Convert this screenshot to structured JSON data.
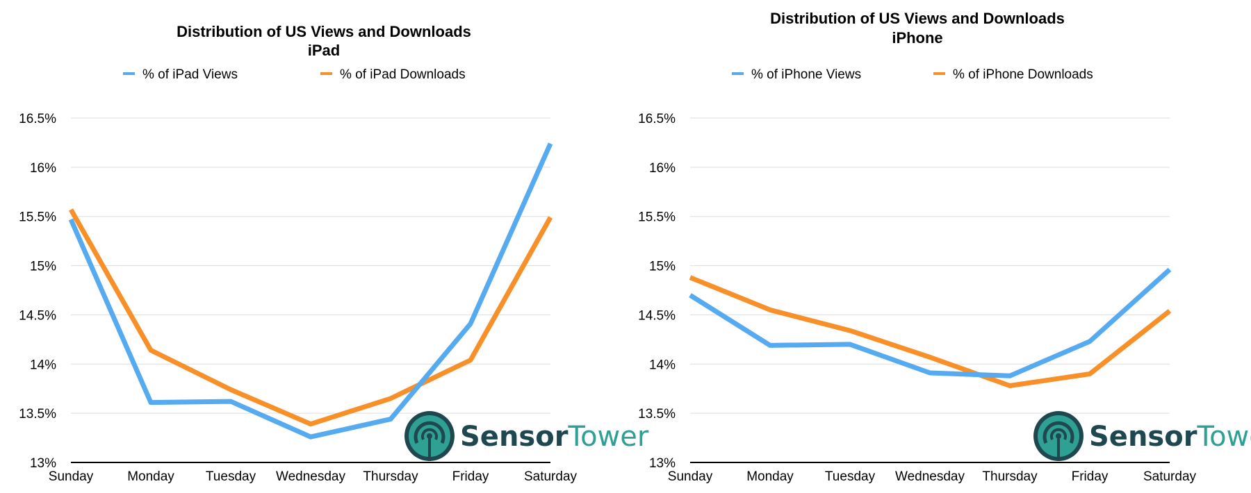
{
  "colors": {
    "views": "#55aaf0",
    "downloads": "#f8902a",
    "logo_dark": "#1f4750",
    "logo_teal": "#2fa094"
  },
  "logo": {
    "part1": "Sensor",
    "part2": "Tower",
    "icon": "sensortower-logo-icon"
  },
  "chart_data": [
    {
      "type": "line",
      "title": "Distribution of US Views and Downloads",
      "subtitle": "iPad",
      "categories": [
        "Sunday",
        "Monday",
        "Tuesday",
        "Wednesday",
        "Thursday",
        "Friday",
        "Saturday"
      ],
      "yticks": [
        "13%",
        "13.5%",
        "14%",
        "14.5%",
        "15%",
        "15.5%",
        "16%",
        "16.5%"
      ],
      "ylim": [
        13,
        16.5
      ],
      "grid": true,
      "legend_position": "top",
      "series": [
        {
          "name": "% of iPad Views",
          "color": "#55aaf0",
          "values": [
            15.47,
            13.61,
            13.62,
            13.26,
            13.44,
            14.41,
            16.24
          ]
        },
        {
          "name": "% of iPad Downloads",
          "color": "#f8902a",
          "values": [
            15.57,
            14.14,
            13.74,
            13.39,
            13.65,
            14.04,
            15.49
          ]
        }
      ]
    },
    {
      "type": "line",
      "title": "Distribution of US Views and Downloads",
      "subtitle": "iPhone",
      "categories": [
        "Sunday",
        "Monday",
        "Tuesday",
        "Wednesday",
        "Thursday",
        "Friday",
        "Saturday"
      ],
      "yticks": [
        "13%",
        "13.5%",
        "14%",
        "14.5%",
        "15%",
        "15.5%",
        "16%",
        "16.5%"
      ],
      "ylim": [
        13,
        16.5
      ],
      "grid": true,
      "legend_position": "top",
      "series": [
        {
          "name": "% of iPhone Views",
          "color": "#55aaf0",
          "values": [
            14.7,
            14.19,
            14.2,
            13.91,
            13.88,
            14.23,
            14.96
          ]
        },
        {
          "name": "% of iPhone Downloads",
          "color": "#f8902a",
          "values": [
            14.88,
            14.55,
            14.34,
            14.07,
            13.78,
            13.9,
            14.54
          ]
        }
      ]
    }
  ]
}
